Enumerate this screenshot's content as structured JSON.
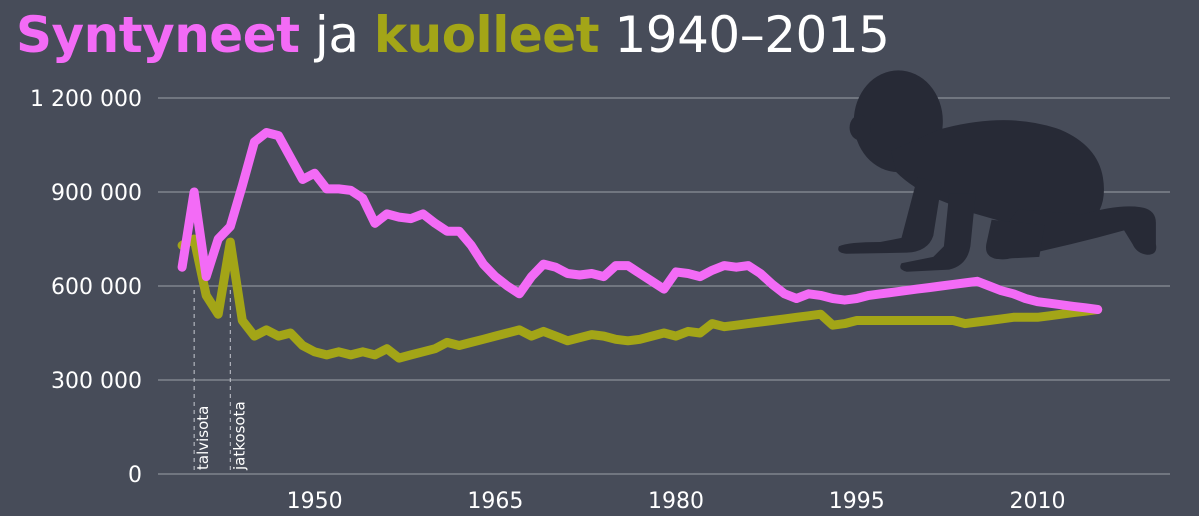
{
  "title": {
    "part1": "Syntyneet",
    "part2": "ja",
    "part3": "kuolleet",
    "part4": "1940–2015"
  },
  "colors": {
    "background": "#474c59",
    "births": "#f36bf6",
    "deaths": "#a3a517",
    "grid": "#8a8f99",
    "silhouette": "#272a36"
  },
  "icons": {
    "silhouette": "crawling-baby-icon"
  },
  "chart_data": {
    "type": "line",
    "title": "Syntyneet ja kuolleet 1940–2015",
    "xlabel": "",
    "ylabel": "",
    "xlim": [
      1937,
      2021
    ],
    "ylim": [
      0,
      1200000
    ],
    "yticks": [
      0,
      300000,
      600000,
      900000,
      1200000
    ],
    "ytick_labels": [
      "0",
      "300 000",
      "600 000",
      "900 000",
      "1 200 000"
    ],
    "xticks": [
      1950,
      1965,
      1980,
      1995,
      2010
    ],
    "xtick_labels": [
      "1950",
      "1965",
      "1980",
      "1995",
      "2010"
    ],
    "grid": true,
    "legend": "none",
    "annotations": [
      {
        "label": "talvisota",
        "x": 1940
      },
      {
        "label": "jatkosota",
        "x": 1943
      }
    ],
    "series": [
      {
        "color": "#f36bf6",
        "x": [
          1939,
          1940,
          1941,
          1942,
          1943,
          1944,
          1945,
          1946,
          1947,
          1948,
          1949,
          1950,
          1951,
          1952,
          1953,
          1954,
          1955,
          1956,
          1957,
          1958,
          1959,
          1960,
          1961,
          1962,
          1963,
          1964,
          1965,
          1966,
          1967,
          1968,
          1969,
          1970,
          1971,
          1972,
          1973,
          1974,
          1975,
          1976,
          1977,
          1978,
          1979,
          1980,
          1981,
          1982,
          1983,
          1984,
          1985,
          1986,
          1987,
          1988,
          1989,
          1990,
          1991,
          1992,
          1993,
          1994,
          1995,
          1996,
          1997,
          1998,
          1999,
          2000,
          2001,
          2002,
          2003,
          2004,
          2005,
          2006,
          2007,
          2008,
          2009,
          2010,
          2011,
          2012,
          2013,
          2014,
          2015
        ],
        "values": [
          660000,
          900000,
          630000,
          750000,
          790000,
          920000,
          1060000,
          1090000,
          1080000,
          1010000,
          940000,
          960000,
          910000,
          910000,
          905000,
          880000,
          800000,
          830000,
          820000,
          815000,
          830000,
          800000,
          775000,
          775000,
          730000,
          670000,
          630000,
          600000,
          575000,
          630000,
          670000,
          660000,
          640000,
          635000,
          640000,
          630000,
          665000,
          665000,
          640000,
          615000,
          590000,
          645000,
          640000,
          630000,
          650000,
          665000,
          660000,
          665000,
          640000,
          605000,
          575000,
          560000,
          575000,
          570000,
          560000,
          555000,
          560000,
          570000,
          575000,
          580000,
          585000,
          590000,
          595000,
          600000,
          605000,
          610000,
          615000,
          600000,
          585000,
          575000,
          560000,
          550000,
          545000,
          540000,
          535000,
          530000,
          525000
        ]
      },
      {
        "color": "#a3a517",
        "x": [
          1939,
          1940,
          1941,
          1942,
          1943,
          1944,
          1945,
          1946,
          1947,
          1948,
          1949,
          1950,
          1951,
          1952,
          1953,
          1954,
          1955,
          1956,
          1957,
          1958,
          1959,
          1960,
          1961,
          1962,
          1963,
          1964,
          1965,
          1966,
          1967,
          1968,
          1969,
          1970,
          1971,
          1972,
          1973,
          1974,
          1975,
          1976,
          1977,
          1978,
          1979,
          1980,
          1981,
          1982,
          1983,
          1984,
          1985,
          1986,
          1987,
          1988,
          1989,
          1990,
          1991,
          1992,
          1993,
          1994,
          1995,
          1996,
          1997,
          1998,
          1999,
          2000,
          2001,
          2002,
          2003,
          2004,
          2005,
          2006,
          2007,
          2008,
          2009,
          2010,
          2011,
          2012,
          2013,
          2014,
          2015
        ],
        "values": [
          730000,
          750000,
          570000,
          510000,
          740000,
          490000,
          440000,
          460000,
          440000,
          450000,
          410000,
          390000,
          380000,
          390000,
          380000,
          390000,
          380000,
          400000,
          370000,
          380000,
          390000,
          400000,
          420000,
          410000,
          420000,
          430000,
          440000,
          450000,
          460000,
          440000,
          455000,
          440000,
          425000,
          435000,
          445000,
          440000,
          430000,
          425000,
          430000,
          440000,
          450000,
          440000,
          455000,
          450000,
          480000,
          470000,
          475000,
          480000,
          485000,
          490000,
          495000,
          500000,
          505000,
          510000,
          475000,
          480000,
          490000,
          490000,
          490000,
          490000,
          490000,
          490000,
          490000,
          490000,
          490000,
          480000,
          485000,
          490000,
          495000,
          500000,
          500000,
          500000,
          505000,
          510000,
          515000,
          520000,
          525000
        ]
      }
    ]
  }
}
